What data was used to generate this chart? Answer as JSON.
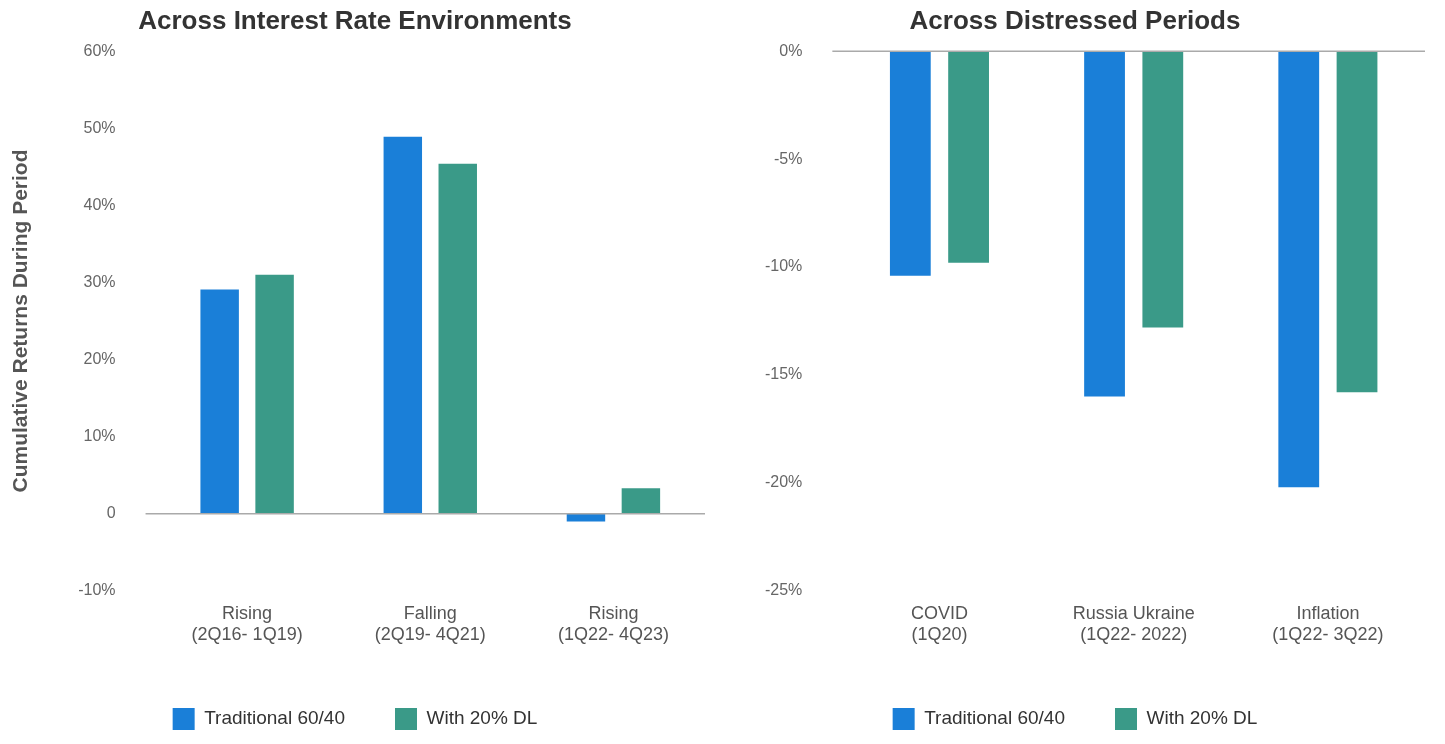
{
  "chart_data": [
    {
      "type": "bar",
      "title": "Across Interest Rate Environments",
      "ylabel": "Cumulative Returns During Period",
      "categories": [
        "Rising\n(2Q16- 1Q19)",
        "Falling\n(2Q19- 4Q21)",
        "Rising\n(1Q22- 4Q23)"
      ],
      "series": [
        {
          "name": "Traditional 60/40",
          "color": "#1a7fd8",
          "values": [
            29.1,
            48.9,
            -1.0
          ]
        },
        {
          "name": "With 20% DL",
          "color": "#3a9a88",
          "values": [
            31.0,
            45.4,
            3.3
          ]
        }
      ],
      "ylim": [
        -10,
        60
      ],
      "yticks": [
        {
          "value": -10,
          "label": "-10%"
        },
        0,
        {
          "value": 10,
          "label": "10%"
        },
        {
          "value": 20,
          "label": "20%"
        },
        {
          "value": 30,
          "label": "30%"
        },
        {
          "value": 40,
          "label": "40%"
        },
        {
          "value": 50,
          "label": "50%"
        },
        {
          "value": 60,
          "label": "60%"
        }
      ],
      "ref_lines": [
        {
          "axis": "y",
          "value": 0,
          "color": "#aaaaaa"
        }
      ],
      "grid": false,
      "legend": "bottom"
    },
    {
      "type": "bar",
      "title": "Across Distressed Periods",
      "categories": [
        "COVID\n(1Q20)",
        "Russia Ukraine\n(1Q22- 2022)",
        "Inflation\n(1Q22- 3Q22)"
      ],
      "series": [
        {
          "name": "Traditional 60/40",
          "color": "#1a7fd8",
          "values": [
            -10.4,
            -16.0,
            -20.2
          ]
        },
        {
          "name": "With 20% DL",
          "color": "#3a9a88",
          "values": [
            -9.8,
            -12.8,
            -15.8
          ]
        }
      ],
      "ylim": [
        -25,
        0
      ],
      "yticks": [
        {
          "value": -25,
          "label": "-25%"
        },
        {
          "value": -20,
          "label": "-20%"
        },
        {
          "value": -15,
          "label": "-15%"
        },
        {
          "value": -10,
          "label": "-10%"
        },
        {
          "value": -5,
          "label": "-5%"
        },
        {
          "value": 0,
          "label": "0%"
        }
      ],
      "ref_lines": [
        {
          "axis": "y",
          "value": 0,
          "color": "#aaaaaa"
        }
      ],
      "grid": false,
      "legend": "bottom"
    }
  ]
}
